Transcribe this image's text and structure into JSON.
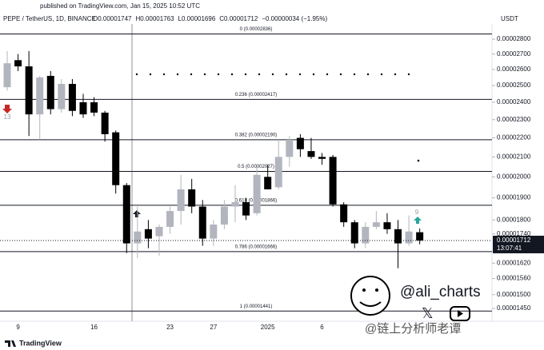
{
  "header": {
    "published": "published on TradingView.com, Jan 15, 2025 10:52 UTC",
    "symbol": "PEPE / TetherUS, 1D, BINANCE",
    "ohlc": [
      "O0.00001747",
      "H0.00001763",
      "L0.00001696",
      "C0.00001712",
      "−0.00000034 (−1.95%)"
    ],
    "currency": "USDT"
  },
  "chart_data": {
    "type": "candlestick",
    "log_scale": true,
    "up_color": "#b2b5be",
    "down_color": "#000000",
    "categories": [
      null,
      "9",
      null,
      null,
      null,
      null,
      null,
      null,
      "16",
      null,
      null,
      null,
      null,
      null,
      null,
      "23",
      null,
      null,
      null,
      "27",
      null,
      null,
      null,
      null,
      "2025",
      null,
      null,
      null,
      null,
      "6",
      null,
      null,
      null,
      null,
      null,
      null,
      null,
      null,
      null
    ],
    "open": [
      2.49e-05,
      2.66e-05,
      2.62e-05,
      2.33e-05,
      2.56e-05,
      2.36e-05,
      2.51e-05,
      2.4e-05,
      2.4e-05,
      2.34e-05,
      2.23e-05,
      1.96e-05,
      1.7e-05,
      1.76e-05,
      1.73e-05,
      1.77e-05,
      1.84e-05,
      1.94e-05,
      1.86e-05,
      1.72e-05,
      1.78e-05,
      1.86e-05,
      1.88e-05,
      1.83e-05,
      2e-05,
      1.95e-05,
      2.1e-05,
      2.2e-05,
      2.13e-05,
      2.1e-05,
      2.1e-05,
      1.87e-05,
      1.79e-05,
      1.7e-05,
      1.77e-05,
      1.79e-05,
      1.76e-05,
      1.7e-05,
      1.747e-05
    ],
    "high": [
      2.72e-05,
      2.7e-05,
      2.72e-05,
      2.56e-05,
      2.59e-05,
      2.54e-05,
      2.54e-05,
      2.45e-05,
      2.43e-05,
      2.35e-05,
      2.24e-05,
      1.97e-05,
      1.86e-05,
      1.8e-05,
      1.78e-05,
      1.86e-05,
      2.01e-05,
      1.99e-05,
      1.89e-05,
      1.8e-05,
      1.89e-05,
      1.96e-05,
      1.9e-05,
      2.06e-05,
      2.06e-05,
      2.19e-05,
      2.21e-05,
      2.22e-05,
      2.2e-05,
      2.12e-05,
      2.11e-05,
      1.88e-05,
      1.8e-05,
      1.79e-05,
      1.84e-05,
      1.83e-05,
      1.8e-05,
      1.82e-05,
      1.763e-05
    ],
    "low": [
      2.47e-05,
      2.59e-05,
      2.21e-05,
      2.19e-05,
      2.33e-05,
      2.34e-05,
      2.32e-05,
      2.31e-05,
      2.32e-05,
      2.18e-05,
      1.92e-05,
      1.66e-05,
      1.64e-05,
      1.68e-05,
      1.65e-05,
      1.74e-05,
      1.78e-05,
      1.83e-05,
      1.69e-05,
      1.69e-05,
      1.76e-05,
      1.79e-05,
      1.8e-05,
      1.82e-05,
      1.94e-05,
      1.94e-05,
      2.05e-05,
      2.1e-05,
      2.09e-05,
      2.06e-05,
      1.86e-05,
      1.77e-05,
      1.68e-05,
      1.68e-05,
      1.76e-05,
      1.74e-05,
      1.6e-05,
      1.69e-05,
      1.696e-05
    ],
    "close": [
      2.64e-05,
      2.62e-05,
      2.33e-05,
      2.55e-05,
      2.36e-05,
      2.51e-05,
      2.35e-05,
      2.33e-05,
      2.34e-05,
      2.22e-05,
      1.96e-05,
      1.7e-05,
      1.75e-05,
      1.72e-05,
      1.77e-05,
      1.84e-05,
      1.94e-05,
      1.86e-05,
      1.72e-05,
      1.78e-05,
      1.86e-05,
      1.88e-05,
      1.82e-05,
      2.01e-05,
      1.94e-05,
      2.1e-05,
      2.19e-05,
      2.14e-05,
      2.1e-05,
      2.09e-05,
      1.87e-05,
      1.79e-05,
      1.7e-05,
      1.77e-05,
      1.79e-05,
      1.76e-05,
      1.7e-05,
      1.75e-05,
      1.712e-05
    ],
    "ylim": [
      1.411e-05,
      2.906e-05
    ],
    "yticks": [
      {
        "value": 2.8e-05,
        "label": "0.00002800"
      },
      {
        "value": 2.7e-05,
        "label": "0.00002700"
      },
      {
        "value": 2.6e-05,
        "label": "0.00002600"
      },
      {
        "value": 2.5e-05,
        "label": "0.00002500"
      },
      {
        "value": 2.4e-05,
        "label": "0.00002400"
      },
      {
        "value": 2.3e-05,
        "label": "0.00002300"
      },
      {
        "value": 2.2e-05,
        "label": "0.00002200"
      },
      {
        "value": 2.1e-05,
        "label": "0.00002100"
      },
      {
        "value": 2e-05,
        "label": "0.00002000"
      },
      {
        "value": 1.9e-05,
        "label": "0.00001900"
      },
      {
        "value": 1.8e-05,
        "label": "0.00001800"
      },
      {
        "value": 1.74e-05,
        "label": "0.00001740"
      },
      {
        "value": 1.62e-05,
        "label": "0.00001620"
      },
      {
        "value": 1.56e-05,
        "label": "0.00001560"
      },
      {
        "value": 1.5e-05,
        "label": "0.00001500"
      },
      {
        "value": 1.45e-05,
        "label": "0.00001450"
      }
    ],
    "fib_levels": [
      {
        "value": 2.836e-05,
        "label": "0 (0.00002836)"
      },
      {
        "value": 2.417e-05,
        "label": "0.236 (0.00002417)"
      },
      {
        "value": 2.19e-05,
        "label": "0.382 (0.00002190)"
      },
      {
        "value": 2.027e-05,
        "label": "0.5 (0.00002027)"
      },
      {
        "value": 1.866e-05,
        "label": "0.618 (0.00001866)"
      },
      {
        "value": 1.666e-05,
        "label": "0.786 (0.00001666)"
      },
      {
        "value": 1.441e-05,
        "label": "1 (0.00001441)"
      }
    ],
    "last_price": {
      "value": 1.712e-05,
      "label": "0.00001712"
    },
    "countdown": "13:07:41",
    "annotations": [
      "13",
      "9"
    ]
  },
  "watermark": {
    "handle": "@ali_charts",
    "cn": "@链上分析师老谭",
    "logo": "TradingView"
  }
}
